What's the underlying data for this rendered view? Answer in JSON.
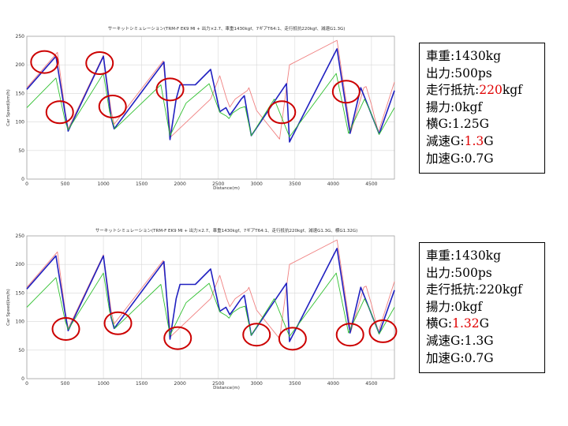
{
  "chart_data": [
    {
      "type": "line",
      "title": "サーキットシミュレーション(TRM-F EK9 MI + 出力×2.7、車重1430kgf、7ギアT64:1、走行抵抗220kgf、減速G1.3G)",
      "xlabel": "Distance(m)",
      "ylabel": "Car Speed(km/h)",
      "xlim": [
        0,
        4800
      ],
      "ylim": [
        0,
        250
      ],
      "x_ticks": [
        "0",
        "500",
        "1000",
        "1500",
        "2000",
        "2500",
        "3000",
        "3500",
        "4000",
        "4500"
      ],
      "y_ticks": [
        "0",
        "50",
        "100",
        "150",
        "200",
        "250"
      ],
      "grid": true,
      "series": [
        {
          "color": "#f08080",
          "x": [
            0,
            400,
            500,
            540,
            1000,
            1100,
            1140,
            1780,
            1880,
            2400,
            2520,
            2610,
            2650,
            2720,
            2880,
            2900,
            3000,
            3300,
            3430,
            4050,
            4230,
            4400,
            4430,
            4500,
            4590,
            4800
          ],
          "y": [
            160,
            222,
            120,
            88,
            217,
            120,
            96,
            207,
            74,
            140,
            181,
            140,
            126,
            140,
            155,
            160,
            120,
            70,
            200,
            243,
            82,
            160,
            162,
            130,
            82,
            170
          ]
        },
        {
          "color": "#2020c0",
          "x": [
            0,
            380,
            500,
            540,
            1000,
            1100,
            1140,
            1790,
            1870,
            1950,
            2000,
            2200,
            2400,
            2520,
            2600,
            2650,
            2700,
            2800,
            2840,
            2930,
            3390,
            3430,
            4050,
            4220,
            4360,
            4420,
            4600,
            4800
          ],
          "y": [
            157,
            215,
            115,
            84,
            215,
            108,
            88,
            205,
            69,
            140,
            165,
            165,
            192,
            118,
            125,
            112,
            121,
            140,
            146,
            76,
            167,
            65,
            228,
            80,
            160,
            140,
            79,
            155
          ]
        },
        {
          "color": "#30c030",
          "x": [
            0,
            380,
            500,
            540,
            1000,
            1080,
            1150,
            1750,
            1870,
            2080,
            2380,
            2520,
            2610,
            2640,
            2690,
            2780,
            2850,
            2930,
            3230,
            3430,
            4040,
            4200,
            4410,
            4500,
            4600,
            4800
          ],
          "y": [
            125,
            177,
            102,
            86,
            185,
            118,
            88,
            165,
            76,
            133,
            167,
            117,
            110,
            106,
            116,
            124,
            127,
            76,
            140,
            74,
            185,
            80,
            140,
            114,
            78,
            125
          ]
        }
      ],
      "markers": [
        {
          "x": 230,
          "y": 205
        },
        {
          "x": 430,
          "y": 117
        },
        {
          "x": 950,
          "y": 203
        },
        {
          "x": 1120,
          "y": 127
        },
        {
          "x": 1870,
          "y": 157
        },
        {
          "x": 3330,
          "y": 117
        },
        {
          "x": 4170,
          "y": 153
        }
      ]
    },
    {
      "type": "line",
      "title": "サーキットシミュレーション(TRM-F EK9 MI + 出力×2.7、車重1430kgf、7ギアT64:1、走行抵抗220kgf、減速G1.3G、横G1.32G)",
      "xlabel": "Distance(m)",
      "ylabel": "Car Speed(km/h)",
      "xlim": [
        0,
        4800
      ],
      "ylim": [
        0,
        250
      ],
      "x_ticks": [
        "0",
        "500",
        "1000",
        "1500",
        "2000",
        "2500",
        "3000",
        "3500",
        "4000",
        "4500"
      ],
      "y_ticks": [
        "0",
        "50",
        "100",
        "150",
        "200",
        "250"
      ],
      "grid": true,
      "series": [
        {
          "color": "#f08080",
          "x": [
            0,
            400,
            500,
            540,
            1000,
            1100,
            1140,
            1780,
            1880,
            2400,
            2520,
            2610,
            2650,
            2720,
            2880,
            2900,
            3000,
            3300,
            3430,
            4050,
            4230,
            4400,
            4430,
            4500,
            4590,
            4800
          ],
          "y": [
            160,
            222,
            120,
            88,
            217,
            120,
            96,
            207,
            74,
            140,
            181,
            140,
            126,
            140,
            155,
            160,
            120,
            70,
            200,
            243,
            82,
            160,
            162,
            130,
            82,
            170
          ]
        },
        {
          "color": "#2020c0",
          "x": [
            0,
            380,
            500,
            540,
            1000,
            1100,
            1140,
            1790,
            1870,
            1950,
            2000,
            2200,
            2400,
            2520,
            2600,
            2650,
            2700,
            2800,
            2840,
            2930,
            3390,
            3430,
            4050,
            4220,
            4360,
            4420,
            4600,
            4800
          ],
          "y": [
            157,
            215,
            115,
            84,
            215,
            108,
            88,
            205,
            69,
            140,
            165,
            165,
            192,
            118,
            125,
            112,
            121,
            140,
            146,
            76,
            167,
            65,
            228,
            80,
            160,
            140,
            79,
            155
          ]
        },
        {
          "color": "#30c030",
          "x": [
            0,
            380,
            500,
            540,
            1000,
            1080,
            1150,
            1750,
            1870,
            2080,
            2380,
            2520,
            2610,
            2640,
            2690,
            2780,
            2850,
            2930,
            3230,
            3430,
            4040,
            4200,
            4410,
            4500,
            4600,
            4800
          ],
          "y": [
            125,
            177,
            102,
            86,
            185,
            118,
            88,
            165,
            76,
            133,
            167,
            117,
            110,
            106,
            116,
            124,
            127,
            76,
            140,
            74,
            185,
            80,
            140,
            114,
            78,
            125
          ]
        }
      ],
      "markers": [
        {
          "x": 510,
          "y": 87
        },
        {
          "x": 1190,
          "y": 97
        },
        {
          "x": 1970,
          "y": 71
        },
        {
          "x": 3000,
          "y": 77
        },
        {
          "x": 3470,
          "y": 70
        },
        {
          "x": 4220,
          "y": 77
        },
        {
          "x": 4650,
          "y": 83
        }
      ]
    }
  ],
  "spec_boxes": [
    {
      "lines": [
        {
          "label": "車重:",
          "value": "1430kg",
          "highlight": "",
          "unit": ""
        },
        {
          "label": "出力:",
          "value": "500ps",
          "highlight": "",
          "unit": ""
        },
        {
          "label": "走行抵抗:",
          "value": "",
          "highlight": "220",
          "unit": "kgf"
        },
        {
          "label": "揚力:",
          "value": "0kgf",
          "highlight": "",
          "unit": ""
        },
        {
          "label": "横G:",
          "value": "1.25G",
          "highlight": "",
          "unit": ""
        },
        {
          "label": "減速G:",
          "value": "",
          "highlight": "1.3",
          "unit": "G"
        },
        {
          "label": "加速G:",
          "value": "0.7G",
          "highlight": "",
          "unit": ""
        }
      ]
    },
    {
      "lines": [
        {
          "label": "車重:",
          "value": "1430kg",
          "highlight": "",
          "unit": ""
        },
        {
          "label": "出力:",
          "value": "500ps",
          "highlight": "",
          "unit": ""
        },
        {
          "label": "走行抵抗:",
          "value": "220kgf",
          "highlight": "",
          "unit": ""
        },
        {
          "label": "揚力:",
          "value": "0kgf",
          "highlight": "",
          "unit": ""
        },
        {
          "label": "横G:",
          "value": "",
          "highlight": "1.32",
          "unit": "G"
        },
        {
          "label": "減速G:",
          "value": "1.3G",
          "highlight": "",
          "unit": ""
        },
        {
          "label": "加速G:",
          "value": "0.7G",
          "highlight": "",
          "unit": ""
        }
      ]
    }
  ],
  "colors": {
    "marker": "#cc0000",
    "grid": "#d8d8d8",
    "highlight": "#e00000"
  }
}
